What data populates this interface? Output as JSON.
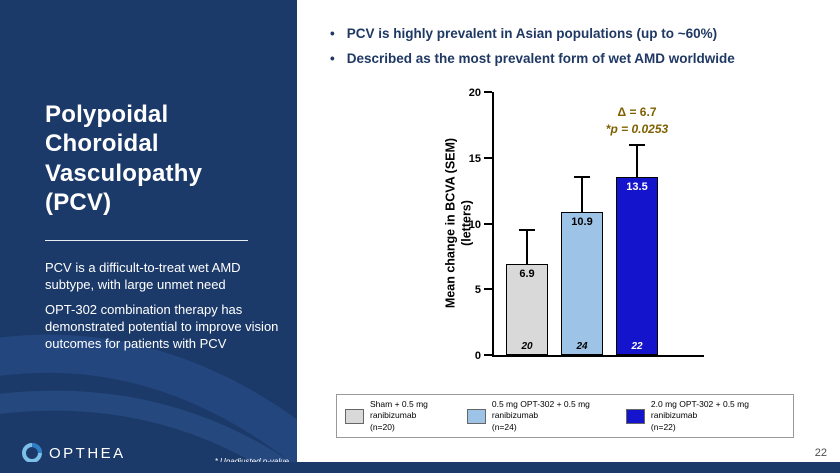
{
  "slide": {
    "page_number": "22",
    "footnote": "* Unadjusted p-value",
    "colors": {
      "sidebar_bg": "#1B3A69",
      "bullet_text": "#1F3864",
      "annotation": "#7F6000"
    }
  },
  "sidebar": {
    "title": "Polypoidal Choroidal Vasculopathy (PCV)",
    "paragraphs": [
      "PCV is a difficult-to-treat wet AMD subtype, with large unmet need",
      "OPT-302 combination therapy has demonstrated potential to improve vision outcomes for patients with PCV"
    ],
    "logo_text": "OPTHEA"
  },
  "bullets": [
    "PCV is highly prevalent in Asian populations (up to ~60%)",
    "Described as the most prevalent form of wet AMD worldwide"
  ],
  "chart_data": {
    "type": "bar",
    "title": "",
    "ylabel": "Mean change in BCVA (SEM) (letters)",
    "ylabel_lines": [
      "Mean change in BCVA (SEM)",
      "(letters)"
    ],
    "ylim": [
      0,
      20
    ],
    "yticks": [
      0,
      5,
      10,
      15,
      20
    ],
    "grid": false,
    "legend_position": "bottom",
    "categories": [
      "Sham + 0.5 mg ranibizumab (n=20)",
      "0.5 mg OPT-302 + 0.5 mg ranibizumab (n=24)",
      "2.0 mg OPT-302 + 0.5 mg ranibizumab (n=22)"
    ],
    "values": [
      6.9,
      10.9,
      13.5
    ],
    "errors_upper": [
      2.6,
      2.6,
      2.5
    ],
    "n_labels": [
      "20",
      "24",
      "22"
    ],
    "bar_colors": [
      "#D9D9D9",
      "#9DC3E6",
      "#1414CC"
    ],
    "value_label_colors": [
      "#000000",
      "#000000",
      "#FFFFFF"
    ],
    "n_label_colors": [
      "#000000",
      "#000000",
      "#FFFFFF"
    ],
    "annotation": {
      "delta": "Δ = 6.7",
      "p_value": "*p = 0.0253"
    },
    "legend": [
      {
        "color": "#D9D9D9",
        "label_line1": "Sham + 0.5 mg ranibizumab",
        "label_line2": "(n=20)"
      },
      {
        "color": "#9DC3E6",
        "label_line1": "0.5 mg OPT-302 + 0.5 mg ranibizumab",
        "label_line2": "(n=24)"
      },
      {
        "color": "#1414CC",
        "label_line1": "2.0 mg OPT-302 + 0.5 mg ranibizumab",
        "label_line2": "(n=22)"
      }
    ]
  }
}
